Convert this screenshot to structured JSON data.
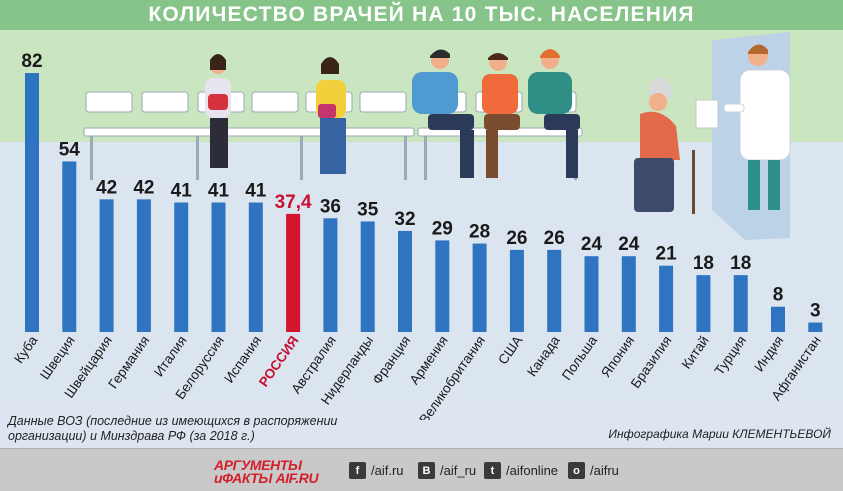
{
  "header": {
    "title": "КОЛИЧЕСТВО ВРАЧЕЙ НА 10 ТЫС. НАСЕЛЕНИЯ"
  },
  "colors": {
    "bar": "#2f74c0",
    "highlight_bar": "#d3152d",
    "highlight_text": "#c8102e",
    "title_bar": "#86c48a"
  },
  "chart_data": {
    "type": "bar",
    "title": "КОЛИЧЕСТВО ВРАЧЕЙ НА 10 ТЫС. НАСЕЛЕНИЯ",
    "xlabel": "",
    "ylabel": "",
    "ylim": [
      0,
      82
    ],
    "grid": false,
    "categories": [
      "Куба",
      "Швеция",
      "Швейцария",
      "Германия",
      "Италия",
      "Белоруссия",
      "Испания",
      "РОССИЯ",
      "Австралия",
      "Нидерланды",
      "Франция",
      "Армения",
      "Великобритания",
      "США",
      "Канада",
      "Польша",
      "Япония",
      "Бразилия",
      "Китай",
      "Турция",
      "Индия",
      "Афганистан"
    ],
    "values": [
      82,
      54,
      42,
      42,
      41,
      41,
      41,
      37.4,
      36,
      35,
      32,
      29,
      28,
      26,
      26,
      24,
      24,
      21,
      18,
      18,
      8,
      3
    ],
    "value_labels": [
      "82",
      "54",
      "42",
      "42",
      "41",
      "41",
      "41",
      "37,4",
      "36",
      "35",
      "32",
      "29",
      "28",
      "26",
      "26",
      "24",
      "24",
      "21",
      "18",
      "18",
      "8",
      "3"
    ],
    "highlight_category": "РОССИЯ"
  },
  "footer": {
    "source_note": "Данные ВОЗ (последние из имеющихся в распоряжении организации) и Минздрава РФ (за 2018 г.)",
    "credit": "Инфографика Марии КЛЕМЕНТЬЕВОЙ",
    "logo_line1": "АРГУМЕНТЫ",
    "logo_line2": "иФАКТЫ AIF.RU",
    "social": [
      {
        "icon": "f",
        "icon_name": "facebook-icon",
        "text": "/aif.ru"
      },
      {
        "icon": "В",
        "icon_name": "vk-icon",
        "text": "/aif_ru"
      },
      {
        "icon": "t",
        "icon_name": "twitter-icon",
        "text": "/aifonline"
      },
      {
        "icon": "о",
        "icon_name": "odnoklassniki-icon",
        "text": "/aifru"
      }
    ]
  }
}
